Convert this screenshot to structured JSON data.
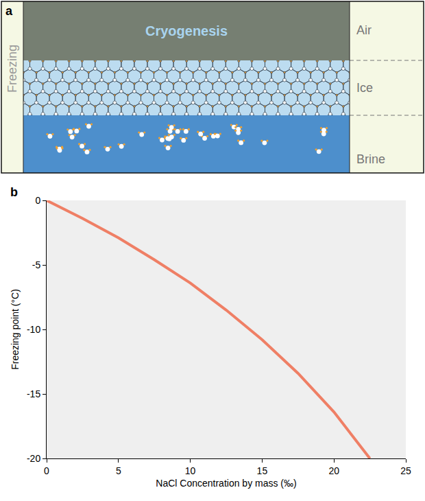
{
  "diagram": {
    "panel_label": "a",
    "side_label": "Freezing",
    "title": "Cryogenesis",
    "layers": [
      "Air",
      "Ice",
      "Brine"
    ]
  },
  "chart_data": {
    "type": "line",
    "panel_label": "b",
    "x_label": "NaCl Concentration by mass (‰)",
    "y_label": "Freezing point (°C)",
    "x": [
      0,
      2.5,
      5,
      7.5,
      10,
      12.5,
      15,
      17.5,
      20,
      22.5
    ],
    "series": [
      {
        "color": "#ef7f65",
        "values": [
          0,
          -1.4,
          -2.9,
          -4.6,
          -6.4,
          -8.5,
          -10.8,
          -13.4,
          -16.4,
          -20
        ]
      }
    ],
    "xlim": [
      0,
      25
    ],
    "xticks": [
      0,
      5,
      10,
      15,
      20,
      25
    ],
    "ylim": [
      -20,
      0
    ],
    "yticks": [
      -20,
      -15,
      -10,
      -5,
      0
    ],
    "grid": false
  }
}
